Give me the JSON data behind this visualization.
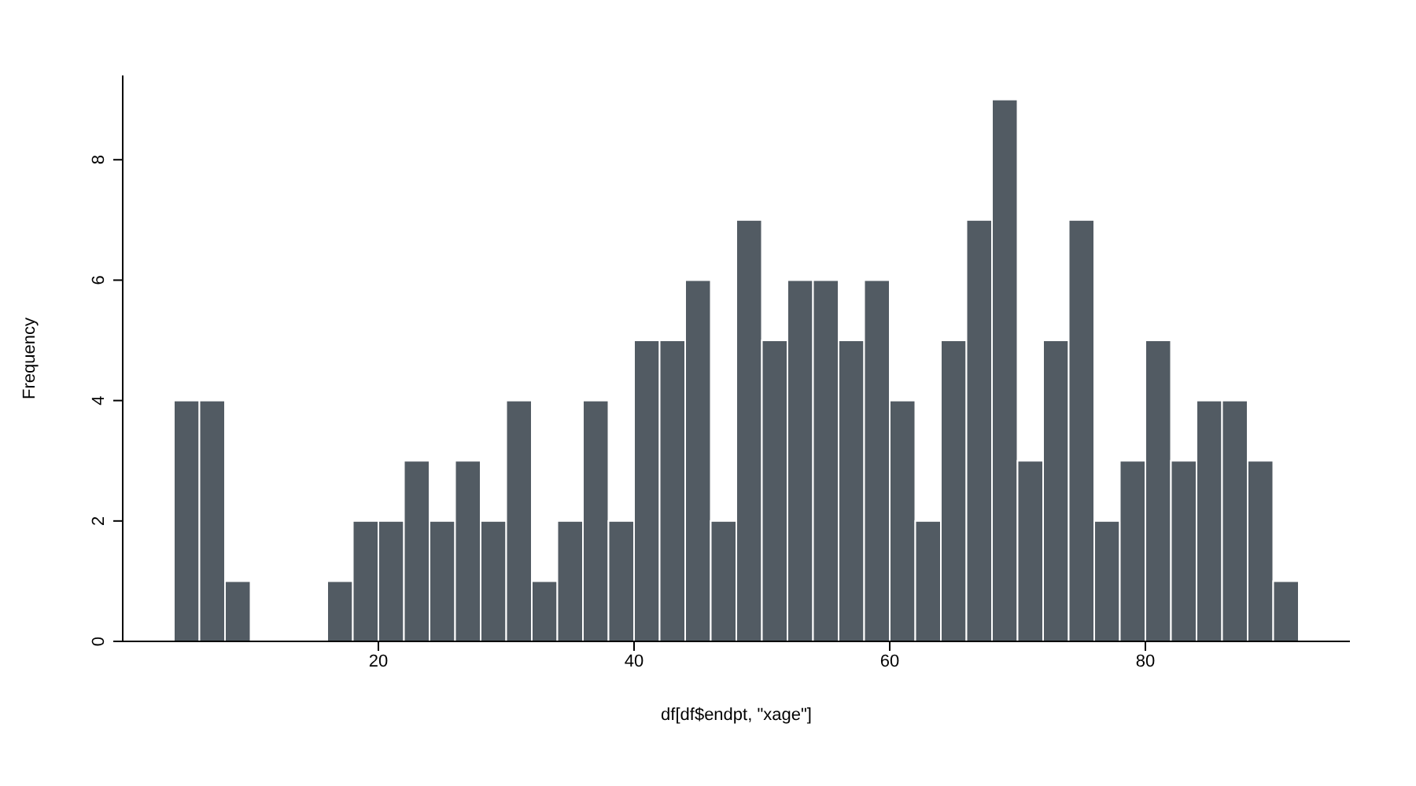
{
  "chart_data": {
    "type": "histogram",
    "xlabel": "df[df$endpt, \"xage\"]",
    "ylabel": "Frequency",
    "bins": [
      4,
      6,
      8,
      10,
      12,
      14,
      16,
      18,
      20,
      22,
      24,
      26,
      28,
      30,
      32,
      34,
      36,
      38,
      40,
      42,
      44,
      46,
      48,
      50,
      52,
      54,
      56,
      58,
      60,
      62,
      64,
      66,
      68,
      70,
      72,
      74,
      76,
      78,
      80,
      82,
      84,
      86,
      88,
      90,
      92
    ],
    "values": [
      4,
      4,
      1,
      0,
      0,
      0,
      1,
      2,
      2,
      3,
      2,
      3,
      2,
      4,
      1,
      2,
      4,
      2,
      5,
      5,
      6,
      2,
      7,
      5,
      6,
      6,
      5,
      6,
      4,
      2,
      5,
      7,
      9,
      3,
      5,
      7,
      2,
      3,
      5,
      3,
      4,
      4,
      3,
      1
    ],
    "color": "#525b63",
    "xlim": [
      0,
      96
    ],
    "xticks": [
      20,
      40,
      60,
      80
    ],
    "ylim": [
      0,
      9.4
    ],
    "yticks": [
      0,
      2,
      4,
      6,
      8
    ],
    "grid": false
  }
}
